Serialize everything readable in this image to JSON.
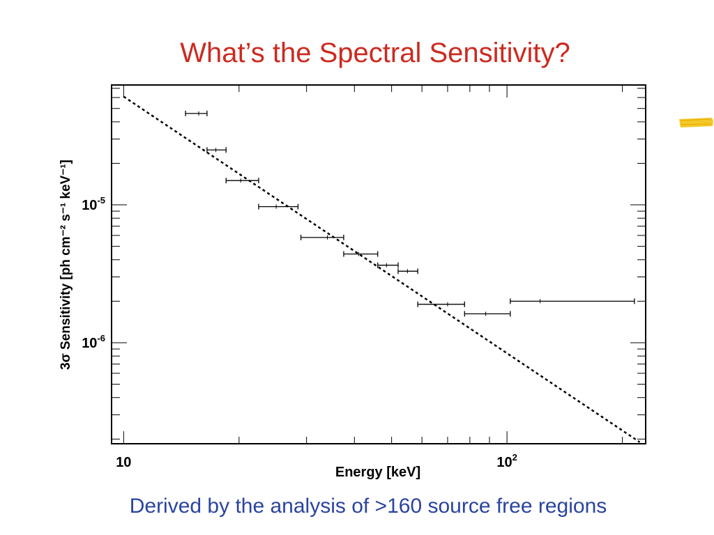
{
  "slide": {
    "title": "What’s the Spectral Sensitivity?",
    "caption": "Derived by the analysis of >160 source free regions"
  },
  "colors": {
    "title": "#cc2a1f",
    "caption": "#2a44a0",
    "highlight": "#f3c316",
    "plot": "#000000"
  },
  "chart_data": {
    "type": "scatter",
    "title": "",
    "xlabel": "Energy [keV]",
    "ylabel": "3σ Sensitivity [ph cm⁻² s⁻¹ keV⁻¹]",
    "xscale": "log",
    "yscale": "log",
    "xlim": [
      9.3,
      230
    ],
    "ylim": [
      1.85e-07,
      7.4e-05
    ],
    "xticklabels": [
      {
        "value": 10,
        "base": "10",
        "exp": ""
      },
      {
        "value": 100,
        "base": "10",
        "exp": "2"
      }
    ],
    "yticklabels": [
      {
        "value": 1e-06,
        "base": "10",
        "exp": "-6"
      },
      {
        "value": 1e-05,
        "base": "10",
        "exp": "-5"
      }
    ],
    "series": [
      {
        "style": "errorbar-x",
        "points": [
          {
            "x": 15.7,
            "xlo": 14.5,
            "xhi": 16.5,
            "y": 4.6e-05
          },
          {
            "x": 17.4,
            "xlo": 16.5,
            "xhi": 18.5,
            "y": 2.5e-05
          },
          {
            "x": 20.2,
            "xlo": 18.5,
            "xhi": 22.5,
            "y": 1.5e-05
          },
          {
            "x": 25.0,
            "xlo": 22.5,
            "xhi": 28.5,
            "y": 9.7e-06
          },
          {
            "x": 34.0,
            "xlo": 29.0,
            "xhi": 37.5,
            "y": 5.8e-06
          },
          {
            "x": 41.0,
            "xlo": 37.5,
            "xhi": 46.0,
            "y": 4.4e-06
          },
          {
            "x": 48.5,
            "xlo": 46.0,
            "xhi": 52.0,
            "y": 3.65e-06
          },
          {
            "x": 55.0,
            "xlo": 52.0,
            "xhi": 58.5,
            "y": 3.3e-06
          },
          {
            "x": 70.0,
            "xlo": 58.5,
            "xhi": 77.5,
            "y": 1.9e-06
          },
          {
            "x": 88.0,
            "xlo": 77.5,
            "xhi": 102.0,
            "y": 1.62e-06
          },
          {
            "x": 122.0,
            "xlo": 102.0,
            "xhi": 215.0,
            "y": 2e-06
          }
        ]
      },
      {
        "style": "dotted-line",
        "points": [
          {
            "x": 10.0,
            "y": 6.1e-05
          },
          {
            "x": 222.0,
            "y": 1.9e-07
          }
        ]
      }
    ],
    "grid": false,
    "legend": "none"
  }
}
